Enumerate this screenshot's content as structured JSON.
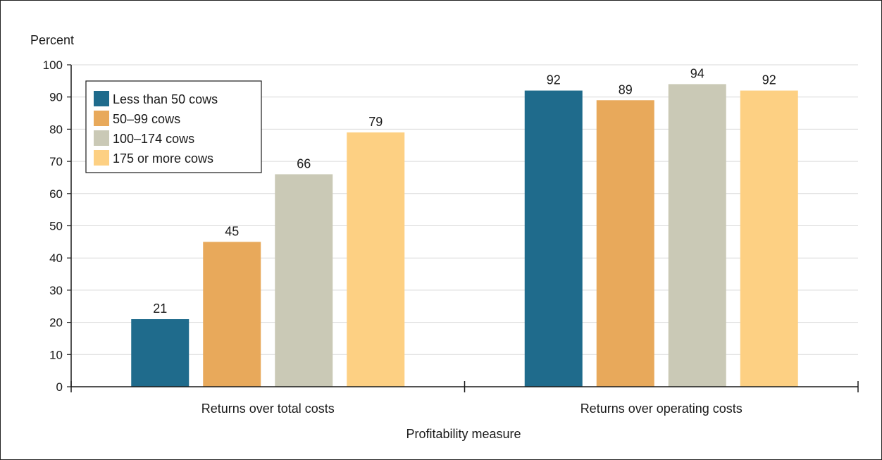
{
  "chart_data": {
    "type": "bar",
    "ylabel": "Percent",
    "xlabel": "Profitability measure",
    "ylim": [
      0,
      100
    ],
    "yticks": [
      0,
      10,
      20,
      30,
      40,
      50,
      60,
      70,
      80,
      90,
      100
    ],
    "grid": true,
    "legend_position": "top-left",
    "categories": [
      "Returns over total costs",
      "Returns over operating costs"
    ],
    "series": [
      {
        "name": "Less than 50 cows",
        "color": "#1f6b8c",
        "values": [
          21,
          92
        ]
      },
      {
        "name": "50–99 cows",
        "color": "#e8a95b",
        "values": [
          45,
          89
        ]
      },
      {
        "name": "100–174 cows",
        "color": "#cac9b6",
        "values": [
          66,
          94
        ]
      },
      {
        "name": "175 or more cows",
        "color": "#fdd083",
        "values": [
          79,
          92
        ]
      }
    ]
  }
}
